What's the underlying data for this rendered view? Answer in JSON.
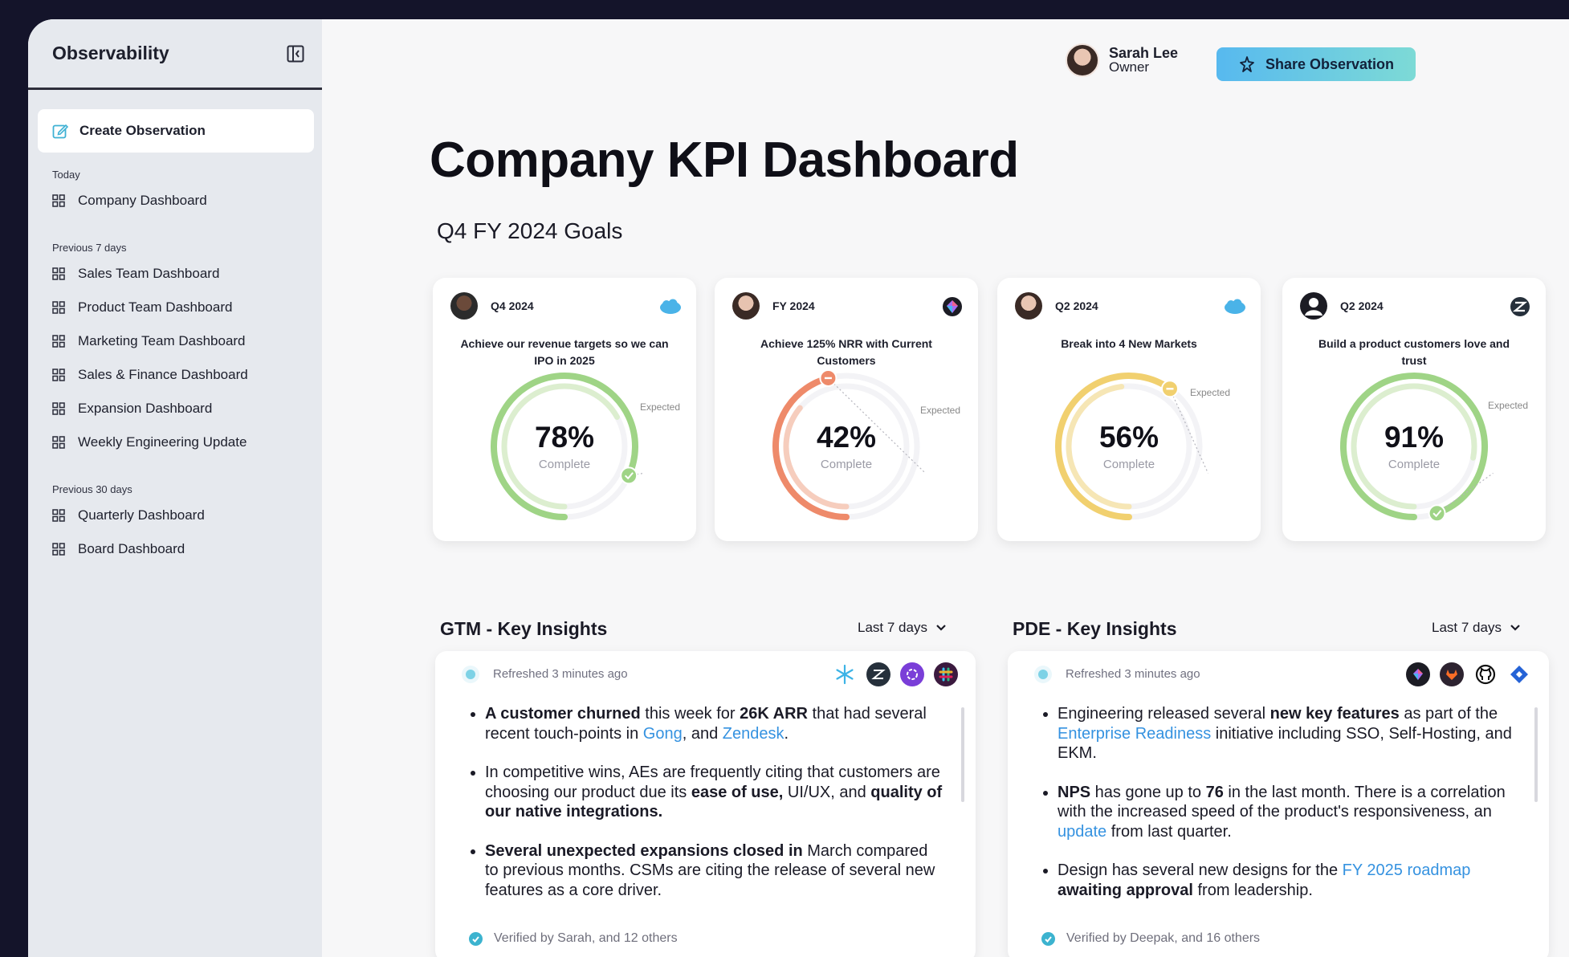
{
  "app": {
    "brand": "Observability"
  },
  "sidebar": {
    "create_label": "Create Observation",
    "sections": [
      {
        "label": "Today",
        "items": [
          "Company Dashboard"
        ]
      },
      {
        "label": "Previous 7 days",
        "items": [
          "Sales Team Dashboard",
          "Product Team Dashboard",
          "Marketing Team Dashboard",
          "Sales & Finance Dashboard",
          "Expansion Dashboard",
          "Weekly Engineering Update"
        ]
      },
      {
        "label": "Previous 30 days",
        "items": [
          "Quarterly Dashboard",
          "Board Dashboard"
        ]
      }
    ]
  },
  "header": {
    "user_name": "Sarah Lee",
    "user_role": "Owner",
    "share_label": "Share Observation"
  },
  "page": {
    "title": "Company KPI Dashboard",
    "goals_title": "Q4 FY 2024 Goals"
  },
  "kpis": [
    {
      "period": "Q4 2024",
      "goal": "Achieve our revenue targets so we can IPO in 2025",
      "percent": "78%",
      "value": 0.78,
      "complete_label": "Complete",
      "expected_label": "Expected",
      "color": "#9fd486",
      "light": "#dceecf",
      "status": "check",
      "source": "salesforce-icon"
    },
    {
      "period": "FY 2024",
      "goal": "Achieve 125% NRR with Current Customers",
      "percent": "42%",
      "value": 0.42,
      "complete_label": "Complete",
      "expected_label": "Expected",
      "color": "#ee8a6a",
      "light": "#f6cdbd",
      "status": "minus",
      "source": "gong-icon"
    },
    {
      "period": "Q2 2024",
      "goal": "Break into 4 New Markets",
      "percent": "56%",
      "value": 0.56,
      "complete_label": "Complete",
      "expected_label": "Expected",
      "color": "#f1d06f",
      "light": "#f6e6b5",
      "status": "minus",
      "source": "salesforce-icon"
    },
    {
      "period": "Q2 2024",
      "goal": "Build a product customers love and trust",
      "percent": "91%",
      "value": 0.91,
      "complete_label": "Complete",
      "expected_label": "Expected",
      "color": "#9fd486",
      "light": "#dceecf",
      "status": "check",
      "source": "zendesk-icon"
    }
  ],
  "gtm": {
    "title": "GTM - Key Insights",
    "range": "Last 7 days",
    "refreshed": "Refreshed 3 minutes ago",
    "b1": {
      "s1": "A customer churned",
      "t1": " this week for ",
      "s2": "26K ARR",
      "t2": " that had several recent touch-points in ",
      "l1": "Gong",
      "t3": ", and ",
      "l2": "Zendesk",
      "t4": "."
    },
    "b2": {
      "t1": " In competitive wins, AEs are frequently citing that customers are choosing our product due its ",
      "s1": "ease of use,",
      "t2": " UI/UX, and ",
      "s2": "quality of our native integrations."
    },
    "b3": {
      "s1": "Several unexpected expansions closed in",
      "t1": " March compared to previous months. CSMs are citing the release of several new features as a core driver."
    },
    "verified": "Verified by Sarah, and 12 others"
  },
  "pde": {
    "title": "PDE - Key Insights",
    "range": "Last 7 days",
    "refreshed": "Refreshed 3 minutes ago",
    "b1": {
      "t1": "Engineering released several ",
      "s1": "new key features",
      "t2": " as part of the ",
      "l1": "Enterprise Readiness",
      "t3": " initiative including SSO, Self-Hosting, and EKM."
    },
    "b2": {
      "s1": "NPS",
      "t1": " has gone up to ",
      "s2": "76",
      "t2": " in the last month. There is a correlation with the increased speed of the product's responsiveness, an ",
      "l1": "update",
      "t3": " from last quarter."
    },
    "b3": {
      "t1": "Design has several new designs for the ",
      "l1": "FY 2025 roadmap",
      "s1": "awaiting approval",
      "t2": " from leadership."
    },
    "verified": "Verified by Deepak, and 16 others"
  }
}
